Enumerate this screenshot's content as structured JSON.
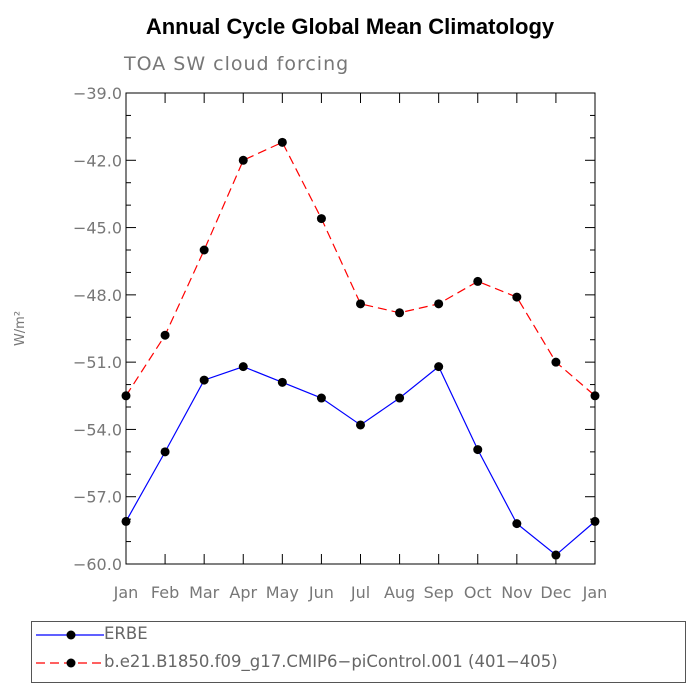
{
  "chart_data": {
    "type": "line",
    "title": "Annual Cycle Global Mean Climatology",
    "subtitle": "TOA SW cloud forcing",
    "ylabel": "W/m²",
    "categories": [
      "Jan",
      "Feb",
      "Mar",
      "Apr",
      "May",
      "Jun",
      "Jul",
      "Aug",
      "Sep",
      "Oct",
      "Nov",
      "Dec",
      "Jan"
    ],
    "ylim": [
      -60.0,
      -39.0
    ],
    "yticks": [
      "-39.0",
      "-42.0",
      "-45.0",
      "-48.0",
      "-51.0",
      "-54.0",
      "-57.0",
      "-60.0"
    ],
    "ytick_values": [
      -39.0,
      -42.0,
      -45.0,
      -48.0,
      -51.0,
      -54.0,
      -57.0,
      -60.0
    ],
    "series": [
      {
        "name": "ERBE",
        "color": "#0000ff",
        "dash": "solid",
        "values": [
          -58.1,
          -55.0,
          -51.8,
          -51.2,
          -51.9,
          -52.6,
          -53.8,
          -52.6,
          -51.2,
          -54.9,
          -58.2,
          -59.6,
          -58.1
        ]
      },
      {
        "name": "b.e21.B1850.f09_g17.CMIP6−piControl.001 (401−405)",
        "color": "#ff0000",
        "dash": "dashed",
        "values": [
          -52.5,
          -49.8,
          -46.0,
          -42.0,
          -41.2,
          -44.6,
          -48.4,
          -48.8,
          -48.4,
          -47.4,
          -48.1,
          -51.0,
          -52.5
        ]
      }
    ]
  }
}
